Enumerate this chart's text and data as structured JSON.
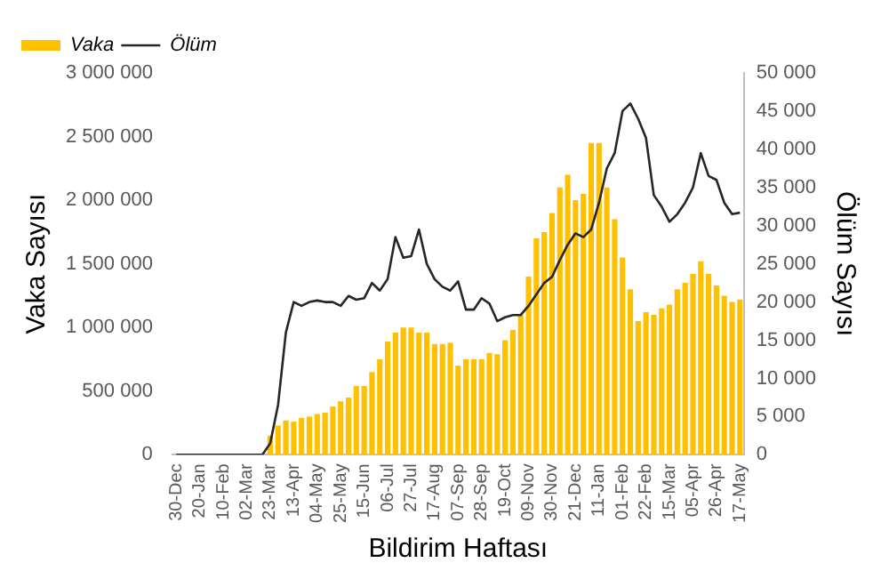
{
  "chart_data": {
    "type": "bar",
    "xlabel": "Bildirim Haftası",
    "ylabel": "Vaka Sayısı",
    "y2label": "Ölüm Sayısı",
    "categories": [
      "30-Dec",
      null,
      null,
      "20-Jan",
      null,
      null,
      "10-Feb",
      null,
      null,
      "02-Mar",
      null,
      null,
      "23-Mar",
      null,
      null,
      "13-Apr",
      null,
      null,
      "04-May",
      null,
      null,
      "25-May",
      null,
      null,
      "15-Jun",
      null,
      null,
      "06-Jul",
      null,
      null,
      "27-Jul",
      null,
      null,
      "17-Aug",
      null,
      null,
      "07-Sep",
      null,
      null,
      "28-Sep",
      null,
      null,
      "19-Oct",
      null,
      null,
      "09-Nov",
      null,
      null,
      "30-Nov",
      null,
      null,
      "21-Dec",
      null,
      null,
      "11-Jan",
      null,
      null,
      "01-Feb",
      null,
      null,
      "22-Feb",
      null,
      null,
      "15-Mar",
      null,
      null,
      "05-Apr",
      null,
      null,
      "26-Apr",
      null,
      null,
      "17-May"
    ],
    "series": [
      {
        "name": "Vaka",
        "color": "#ffc000",
        "values": [
          0,
          0,
          0,
          0,
          0,
          0,
          0,
          0,
          0,
          0,
          0,
          null,
          150000,
          230000,
          270000,
          260000,
          290000,
          300000,
          320000,
          330000,
          380000,
          420000,
          450000,
          540000,
          540000,
          650000,
          750000,
          890000,
          960000,
          1000000,
          1000000,
          960000,
          960000,
          870000,
          870000,
          880000,
          700000,
          750000,
          750000,
          750000,
          800000,
          790000,
          900000,
          980000,
          1100000,
          1400000,
          1700000,
          1750000,
          1900000,
          2100000,
          2200000,
          2000000,
          2050000,
          2450000,
          2450000,
          2100000,
          1850000,
          1550000,
          1300000,
          1050000,
          1120000,
          1100000,
          1150000,
          1180000,
          1300000,
          1350000,
          1420000,
          1520000,
          1420000,
          1330000,
          1250000,
          1200000,
          1220000
        ]
      },
      {
        "name": "Ölüm",
        "type": "line",
        "axis": "y2",
        "color": "#262626",
        "values": [
          0,
          0,
          0,
          0,
          0,
          0,
          0,
          0,
          0,
          0,
          0,
          0,
          1500,
          6500,
          16000,
          20000,
          19500,
          20000,
          20200,
          20000,
          20000,
          19500,
          20800,
          20300,
          20500,
          22500,
          21500,
          23000,
          28500,
          25800,
          26000,
          29500,
          25000,
          23000,
          22000,
          21500,
          22700,
          19000,
          19000,
          20500,
          19800,
          17500,
          18000,
          18300,
          18300,
          19500,
          21000,
          22500,
          23300,
          25500,
          27500,
          29000,
          28500,
          29500,
          33000,
          37500,
          39500,
          45000,
          46000,
          44000,
          41500,
          34000,
          32500,
          30500,
          31500,
          33000,
          35000,
          39500,
          36500,
          36000,
          33000,
          31500,
          31700
        ]
      }
    ],
    "ylim": [
      0,
      3000000
    ],
    "yticks": [
      0,
      {
        "value": 500000,
        "label": "500 000"
      },
      {
        "value": 1000000,
        "label": "1 000 000"
      },
      {
        "value": 1500000,
        "label": "1 500 000"
      },
      {
        "value": 2000000,
        "label": "2 000 000"
      },
      {
        "value": 2500000,
        "label": "2 500 000"
      },
      {
        "value": 3000000,
        "label": "3 000 000"
      }
    ],
    "y2lim": [
      0,
      50000
    ],
    "y2ticks": [
      0,
      {
        "value": 5000,
        "label": "5 000"
      },
      {
        "value": 10000,
        "label": "10 000"
      },
      {
        "value": 15000,
        "label": "15 000"
      },
      {
        "value": 20000,
        "label": "20 000"
      },
      {
        "value": 25000,
        "label": "25 000"
      },
      {
        "value": 30000,
        "label": "30 000"
      },
      {
        "value": 35000,
        "label": "35 000"
      },
      {
        "value": 40000,
        "label": "40 000"
      },
      {
        "value": 45000,
        "label": "45 000"
      },
      {
        "value": 50000,
        "label": "50 000"
      }
    ],
    "grid": false,
    "legend": "top left",
    "marker": "none",
    "line_style": "solid"
  }
}
